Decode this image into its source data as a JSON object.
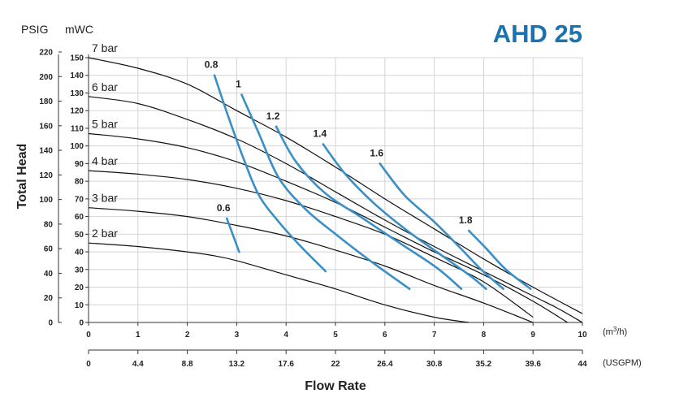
{
  "chart_data": {
    "type": "line",
    "title": "AHD 25",
    "xlabel": "Flow Rate",
    "ylabel": "Total Head",
    "y_units": {
      "left": "PSIG",
      "right": "mWC"
    },
    "x_units": {
      "primary_prefix": "(m",
      "primary_sup": "3",
      "primary_suffix": "/h)",
      "secondary": "(USGPM)"
    },
    "xlim": [
      0,
      10
    ],
    "ylim_mwc": [
      0,
      150
    ],
    "x_ticks": [
      "0",
      "1",
      "2",
      "3",
      "4",
      "5",
      "6",
      "7",
      "8",
      "9",
      "10"
    ],
    "x_ticks_usgpm": [
      "0",
      "4.4",
      "8.8",
      "13.2",
      "17.6",
      "22",
      "26.4",
      "30.8",
      "35.2",
      "39.6",
      "44"
    ],
    "y_ticks_mwc": [
      "0",
      "10",
      "20",
      "30",
      "40",
      "50",
      "60",
      "70",
      "80",
      "90",
      "100",
      "110",
      "120",
      "130",
      "140",
      "150"
    ],
    "y_ticks_psig": [
      "0",
      "20",
      "40",
      "60",
      "80",
      "100",
      "120",
      "140",
      "160",
      "180",
      "200",
      "220"
    ],
    "grid": true,
    "series": [
      {
        "name": "7 bar",
        "x": [
          0,
          1,
          2,
          3,
          4,
          5,
          6,
          7,
          8,
          9,
          10
        ],
        "y": [
          150,
          144,
          135,
          120,
          105,
          88,
          70,
          53,
          36,
          20,
          5
        ]
      },
      {
        "name": "6 bar",
        "x": [
          0,
          1,
          2,
          3,
          4,
          5,
          6,
          7,
          8,
          9,
          9.5,
          10
        ],
        "y": [
          128,
          124,
          115,
          104,
          90,
          74,
          58,
          43,
          29,
          15,
          8,
          0
        ]
      },
      {
        "name": "5 bar",
        "x": [
          0,
          1,
          2,
          3,
          4,
          5,
          6,
          7,
          8,
          9,
          9.7
        ],
        "y": [
          107,
          104,
          99,
          91,
          80,
          68,
          54,
          40,
          27,
          12,
          0
        ]
      },
      {
        "name": "4 bar",
        "x": [
          0,
          1,
          2,
          3,
          4,
          5,
          6,
          7,
          8,
          9
        ],
        "y": [
          86,
          84,
          81,
          76,
          69,
          60,
          50,
          37,
          23,
          3
        ]
      },
      {
        "name": "3 bar",
        "x": [
          0,
          1,
          2,
          3,
          4,
          5,
          6,
          7,
          8,
          9
        ],
        "y": [
          65,
          63,
          60,
          55,
          49,
          41,
          32,
          21,
          11,
          0
        ]
      },
      {
        "name": "2 bar",
        "x": [
          0,
          1,
          2,
          2.5,
          3,
          4,
          5,
          6,
          7,
          7.7
        ],
        "y": [
          45,
          43,
          40,
          38,
          35,
          27,
          19,
          10,
          3,
          0
        ]
      }
    ],
    "air_consumption": [
      {
        "label": "0.6",
        "x": [
          2.8,
          3.05
        ],
        "y": [
          59,
          40
        ]
      },
      {
        "label": "0.8",
        "x": [
          2.55,
          2.85,
          3.15,
          3.45,
          3.85,
          4.3,
          4.8
        ],
        "y": [
          140,
          115,
          92,
          72,
          57,
          43,
          29
        ]
      },
      {
        "label": "1",
        "x": [
          3.1,
          3.45,
          3.85,
          4.4,
          5.05,
          5.7,
          6.5
        ],
        "y": [
          129,
          107,
          82,
          64,
          49,
          35,
          19
        ]
      },
      {
        "label": "1.2",
        "x": [
          3.8,
          4.2,
          4.8,
          5.5,
          6.3,
          7.05,
          7.55
        ],
        "y": [
          111,
          91,
          73,
          60,
          45,
          31,
          19
        ]
      },
      {
        "label": "1.4",
        "x": [
          4.75,
          5.2,
          5.8,
          6.5,
          7.2,
          7.75,
          8.05
        ],
        "y": [
          101,
          84,
          67,
          51,
          37,
          26,
          19
        ]
      },
      {
        "label": "1.6",
        "x": [
          5.9,
          6.4,
          7,
          7.5,
          7.95,
          8.4
        ],
        "y": [
          90,
          72,
          57,
          43,
          30,
          19
        ]
      },
      {
        "label": "1.8",
        "x": [
          7.7,
          8.05,
          8.45,
          8.95
        ],
        "y": [
          52,
          42,
          30,
          19
        ]
      }
    ]
  }
}
